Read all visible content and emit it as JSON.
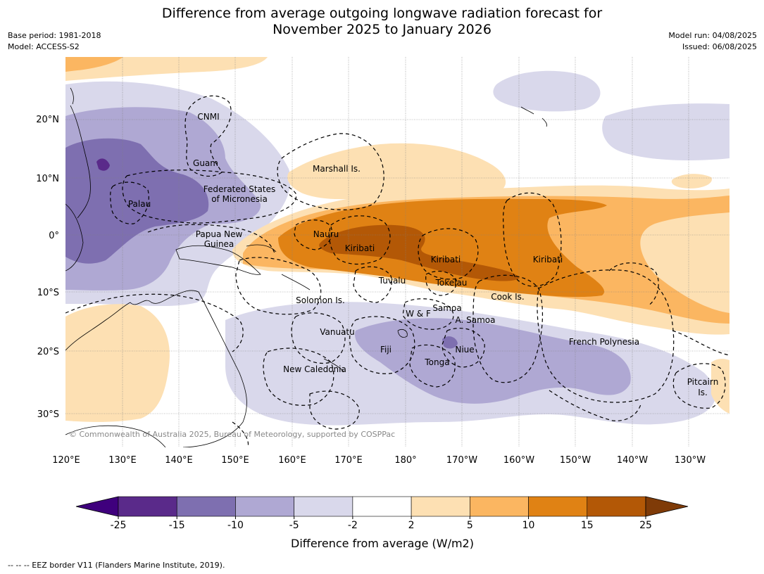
{
  "title_line1": "Difference from average outgoing longwave radiation forecast for",
  "title_line2": "November 2025 to January 2026",
  "base_period": "Base period: 1981-2018",
  "model": "Model: ACCESS-S2",
  "model_run": "Model run: 04/08/2025",
  "issued": "Issued: 06/08/2025",
  "copyright": "© Commonwealth of Australia 2025, Bureau of Meteorology, supported by COSPPac",
  "footer": "--  --  -- EEZ border V11 (Flanders Marine Institute, 2019).",
  "lat_labels": [
    "20°N",
    "10°N",
    "0°",
    "10°S",
    "20°S",
    "30°S"
  ],
  "lon_labels": [
    "120°E",
    "130°E",
    "140°E",
    "150°E",
    "160°E",
    "170°E",
    "180°",
    "170°W",
    "160°W",
    "150°W",
    "140°W",
    "130°W"
  ],
  "places": {
    "cnmi": "CNMI",
    "guam": "Guam",
    "marshall": "Marshall Is.",
    "fsm1": "Federated States",
    "fsm2": "of Micronesia",
    "palau": "Palau",
    "png1": "Papua New",
    "png2": "Guinea",
    "nauru": "Nauru",
    "kiribati_w": "Kiribati",
    "kiribati_c": "Kiribati",
    "kiribati_e": "Kiribati",
    "tuvalu": "Tuvalu",
    "tokelau": "Tokelau",
    "cook": "Cook Is.",
    "solomon": "Solomon Is.",
    "wf": "W & F",
    "samoa": "Samoa",
    "asamoa": "A. Samoa",
    "vanuatu": "Vanuatu",
    "fiji": "Fiji",
    "niue": "Niue",
    "tonga": "Tonga",
    "french_polynesia": "French Polynesia",
    "new_caledonia": "New Caledonia",
    "pitcairn1": "Pitcairn",
    "pitcairn2": "Is."
  },
  "colorbar": {
    "label": "Difference from average (W/m2)",
    "ticks": [
      "-25",
      "-15",
      "-10",
      "-5",
      "-2",
      "2",
      "5",
      "10",
      "15",
      "25"
    ],
    "colors": [
      "#3f007d",
      "#5a2a8a",
      "#7e6fb0",
      "#afa8d3",
      "#d9d8eb",
      "#ffffff",
      "#fde0b3",
      "#fbb661",
      "#e08214",
      "#b35806",
      "#7f3b08"
    ]
  },
  "colors": {
    "purple_faint": "#d9d8eb",
    "purple_light": "#afa8d3",
    "purple_mid": "#7e6fb0",
    "purple_dark": "#5a2a8a",
    "orange_faint": "#fde0b3",
    "orange_light": "#fbb661",
    "orange_mid": "#e08214",
    "orange_dark": "#b35806"
  }
}
